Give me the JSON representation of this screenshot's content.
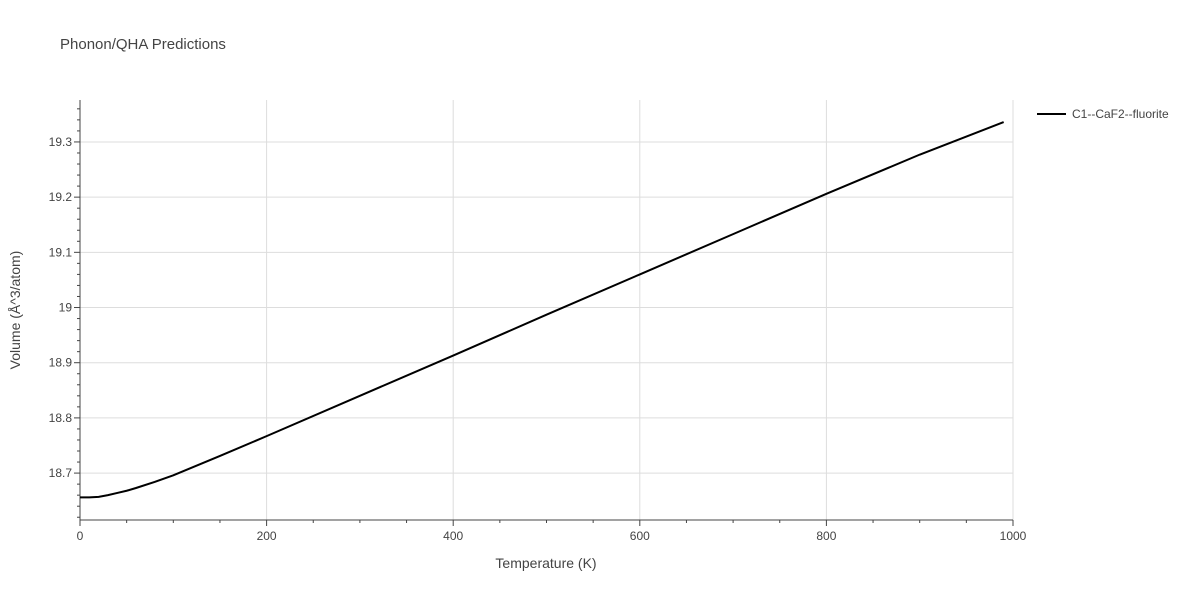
{
  "chart_data": {
    "type": "line",
    "title": "Phonon/QHA Predictions",
    "xlabel": "Temperature (K)",
    "ylabel": "Volume (Å^3/atom)",
    "xlim": [
      0,
      1000
    ],
    "ylim": [
      18.615,
      19.376
    ],
    "x_ticks": [
      0,
      200,
      400,
      600,
      800,
      1000
    ],
    "x_tick_labels": [
      "0",
      "200",
      "400",
      "600",
      "800",
      "1000"
    ],
    "y_ticks": [
      18.7,
      18.8,
      18.9,
      19.0,
      19.1,
      19.2,
      19.3
    ],
    "y_tick_labels": [
      "18.7",
      "18.8",
      "18.9",
      "19",
      "19.1",
      "19.2",
      "19.3"
    ],
    "grid": true,
    "legend_position": "top-right outside",
    "series": [
      {
        "name": "C1--CaF2--fluorite",
        "color": "#000000",
        "x": [
          0,
          10,
          20,
          30,
          40,
          50,
          60,
          80,
          100,
          150,
          200,
          300,
          400,
          500,
          600,
          700,
          800,
          900,
          990
        ],
        "y": [
          18.656,
          18.656,
          18.657,
          18.66,
          18.664,
          18.668,
          18.673,
          18.684,
          18.696,
          18.731,
          18.767,
          18.84,
          18.913,
          18.987,
          19.06,
          19.133,
          19.206,
          19.277,
          19.336
        ]
      }
    ]
  }
}
